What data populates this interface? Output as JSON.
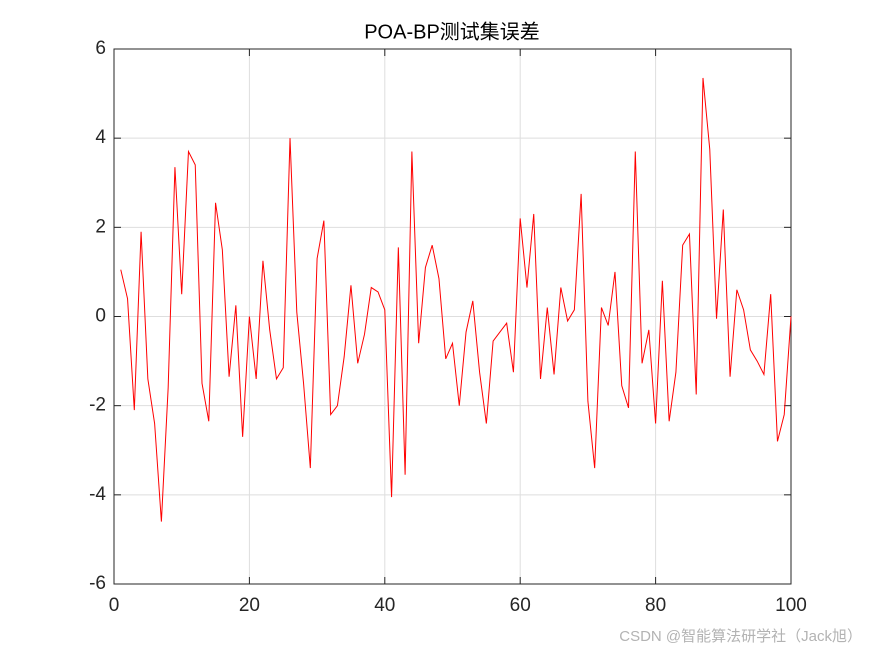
{
  "chart_data": {
    "type": "line",
    "title": "POA-BP测试集误差",
    "watermark": "CSDN @智能算法研学社（Jack旭）",
    "x": [
      1,
      2,
      3,
      4,
      5,
      6,
      7,
      8,
      9,
      10,
      11,
      12,
      13,
      14,
      15,
      16,
      17,
      18,
      19,
      20,
      21,
      22,
      23,
      24,
      25,
      26,
      27,
      28,
      29,
      30,
      31,
      32,
      33,
      34,
      35,
      36,
      37,
      38,
      39,
      40,
      41,
      42,
      43,
      44,
      45,
      46,
      47,
      48,
      49,
      50,
      51,
      52,
      53,
      54,
      55,
      56,
      57,
      58,
      59,
      60,
      61,
      62,
      63,
      64,
      65,
      66,
      67,
      68,
      69,
      70,
      71,
      72,
      73,
      74,
      75,
      76,
      77,
      78,
      79,
      80,
      81,
      82,
      83,
      84,
      85,
      86,
      87,
      88,
      89,
      90,
      91,
      92,
      93,
      94,
      95,
      96,
      97,
      98,
      99,
      100
    ],
    "values": [
      1.05,
      0.4,
      -2.1,
      1.9,
      -1.4,
      -2.4,
      -4.6,
      -1.6,
      3.35,
      0.5,
      3.7,
      3.4,
      -1.5,
      -2.35,
      2.55,
      1.5,
      -1.35,
      0.25,
      -2.7,
      0.0,
      -1.4,
      1.25,
      -0.3,
      -1.4,
      -1.15,
      4.0,
      0.1,
      -1.5,
      -3.4,
      1.3,
      2.15,
      -2.2,
      -2.0,
      -0.9,
      0.7,
      -1.05,
      -0.4,
      0.65,
      0.55,
      0.15,
      -4.05,
      1.55,
      -3.55,
      3.7,
      -0.6,
      1.1,
      1.6,
      0.85,
      -0.95,
      -0.6,
      -2.0,
      -0.35,
      0.35,
      -1.25,
      -2.4,
      -0.55,
      -0.35,
      -0.15,
      -1.25,
      2.2,
      0.65,
      2.3,
      -1.4,
      0.2,
      -1.3,
      0.65,
      -0.1,
      0.15,
      2.75,
      -1.9,
      -3.4,
      0.2,
      -0.2,
      1.0,
      -1.55,
      -2.05,
      3.7,
      -1.05,
      -0.3,
      -2.4,
      0.8,
      -2.35,
      -1.25,
      1.6,
      1.85,
      -1.75,
      5.35,
      3.75,
      -0.05,
      2.4,
      -1.35,
      0.6,
      0.15,
      -0.75,
      -1.0,
      -1.3,
      0.5,
      -2.8,
      -2.2,
      0.0
    ],
    "color": "#ff0000",
    "xlim": [
      0,
      100
    ],
    "xticks": [
      0,
      20,
      40,
      60,
      80,
      100
    ],
    "ylim": [
      -6,
      6
    ],
    "yticks": [
      -6,
      -4,
      -2,
      0,
      2,
      4,
      6
    ],
    "grid": true
  }
}
